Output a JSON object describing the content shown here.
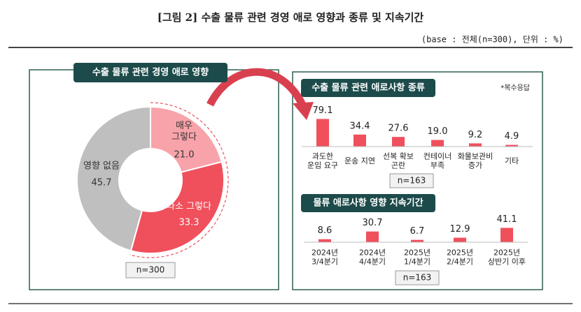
{
  "header": {
    "title": "[그림 2] 수출 물류 관련 경영 애로 영향과 종류 및 지속기간",
    "subtitle": "(base : 전체(n=300), 단위 : %)"
  },
  "chart_data": [
    {
      "type": "donut",
      "title": "수출 물류 관련 경영 애로 영향",
      "categories": [
        "매우\n그렇다",
        "다소 그렇다",
        "영향 없음"
      ],
      "values": [
        21.0,
        33.3,
        45.7
      ],
      "value_labels": [
        "21.0",
        "33.3",
        "45.7"
      ],
      "colors": [
        "#f8a3aa",
        "#f04f5c",
        "#bfbfbf"
      ],
      "note": "n=300"
    },
    {
      "type": "bar",
      "title": "수출 물류 관련 애로사항 종류",
      "annotation": "*복수응답",
      "categories": [
        "과도한\n운임 요구",
        "운송 지연",
        "선복 확보\n곤란",
        "컨테이너\n부족",
        "화물보관비\n증가",
        "기타"
      ],
      "values": [
        79.1,
        34.4,
        27.6,
        19.0,
        9.2,
        4.9
      ],
      "value_labels": [
        "79.1",
        "34.4",
        "27.6",
        "19.0",
        "9.2",
        "4.9"
      ],
      "color": "#f04f5c",
      "note": "n=163"
    },
    {
      "type": "bar",
      "title": "물류 애로사항 영향 지속기간",
      "categories": [
        "2024년\n3/4분기",
        "2024년\n4/4분기",
        "2025년\n1/4분기",
        "2025년\n2/4분기",
        "2025년\n상반기 이후"
      ],
      "values": [
        8.6,
        30.7,
        6.7,
        12.9,
        41.1
      ],
      "value_labels": [
        "8.6",
        "30.7",
        "6.7",
        "12.9",
        "41.1"
      ],
      "color": "#f04f5c",
      "note": "n=163"
    }
  ]
}
